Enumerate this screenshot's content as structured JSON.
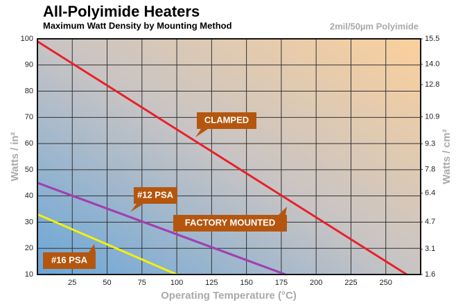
{
  "chart_data": {
    "type": "line",
    "title": "All-Polyimide Heaters",
    "subtitle": "Maximum Watt Density by Mounting Method",
    "annotation": "2mil/50µm Polyimide",
    "xlabel": "Operating Temperature (°C)",
    "ylabel": "Watts / in²",
    "y2label": "Watts / cm²",
    "xlim": [
      0,
      275
    ],
    "xticks": [
      25,
      50,
      75,
      100,
      125,
      150,
      175,
      200,
      225,
      250
    ],
    "ylim": [
      10,
      100
    ],
    "yticks": [
      10,
      20,
      30,
      40,
      50,
      60,
      70,
      80,
      90,
      100
    ],
    "y2lim": [
      1.6,
      15.5
    ],
    "y2ticks": [
      {
        "value": 1.6,
        "label": "1.6"
      },
      3.1,
      4.7,
      6.4,
      7.8,
      9.3,
      10.9,
      12.8,
      {
        "value": 14.0,
        "label": "14.0"
      },
      15.5
    ],
    "grid": true,
    "series": [
      {
        "name": "CLAMPED",
        "color": "#e8202a",
        "x": [
          0,
          265
        ],
        "values": [
          99,
          10
        ]
      },
      {
        "name": "#12 PSA",
        "color": "#a040b0",
        "x": [
          0,
          178
        ],
        "values": [
          45,
          10
        ]
      },
      {
        "name": "FACTORY MOUNTED",
        "color": "#a040b0",
        "x": [
          0,
          178
        ],
        "values": [
          45,
          10
        ]
      },
      {
        "name": "#16 PSA",
        "color": "#f2f20a",
        "x": [
          0,
          100
        ],
        "values": [
          33,
          10
        ]
      }
    ]
  }
}
